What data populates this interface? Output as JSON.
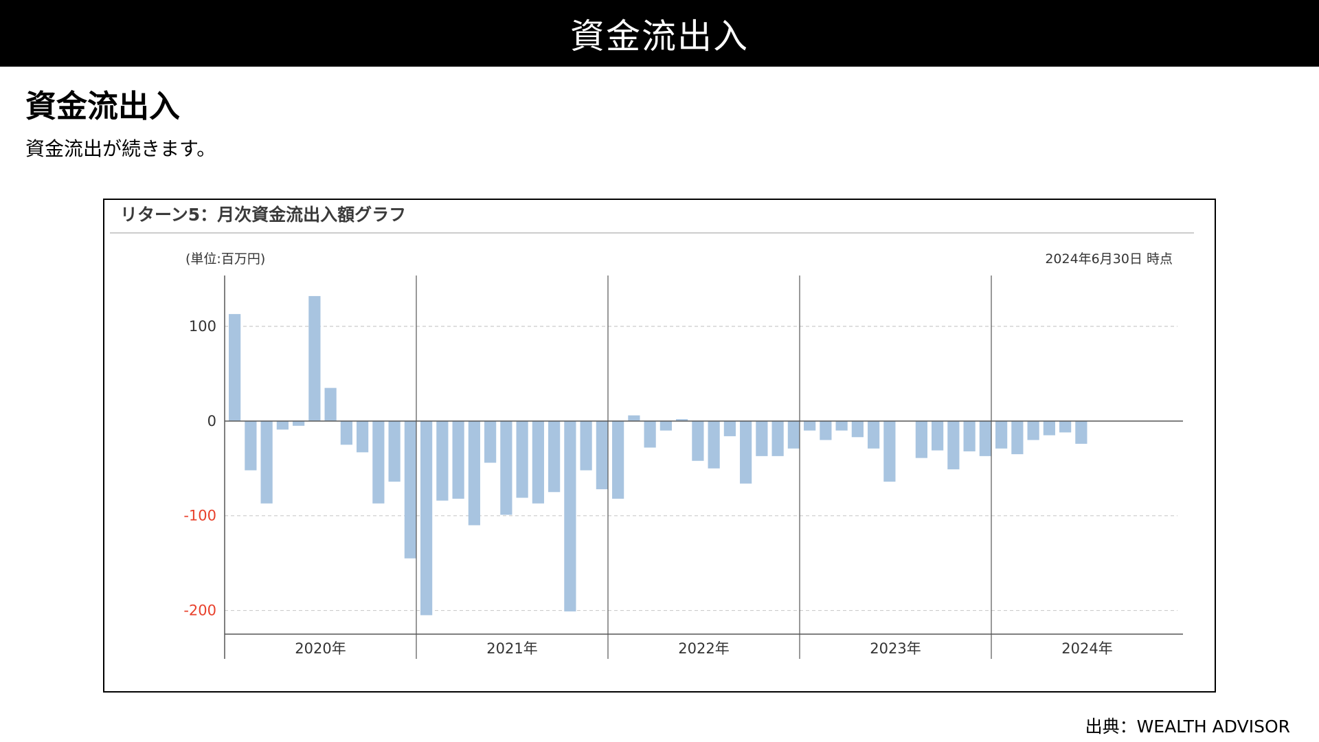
{
  "header": {
    "title": "資金流出入"
  },
  "section": {
    "heading": "資金流出入",
    "description": "資金流出が続きます。"
  },
  "source": "出典：WEALTH ADVISOR",
  "chart_data": {
    "type": "bar",
    "title": "リターン5：月次資金流出入額グラフ",
    "unit_label": "(単位:百万円)",
    "as_of": "2024年6月30日 時点",
    "ylim": [
      -225,
      145
    ],
    "yticks": [
      100,
      0,
      -100,
      -200
    ],
    "tick_colors": {
      "positive": "#333333",
      "negative": "#e8412c"
    },
    "bar_color": "#a8c4e0",
    "grid": true,
    "year_labels": [
      "2020年",
      "2021年",
      "2022年",
      "2023年",
      "2024年"
    ],
    "series": [
      {
        "values": [
          113,
          -52,
          -87,
          -9,
          -5,
          132,
          35,
          -25,
          -33,
          -87,
          -64,
          -145,
          -205,
          -84,
          -82,
          -110,
          -44,
          -99,
          -81,
          -87,
          -75,
          -201,
          -52,
          -72,
          -82,
          6,
          -28,
          -10,
          2,
          -42,
          -50,
          -16,
          -66,
          -37,
          -37,
          -29,
          -10,
          -20,
          -10,
          -17,
          -29,
          -64,
          0,
          -39,
          -31,
          -51,
          -32,
          -37,
          -29,
          -35,
          -20,
          -15,
          -12,
          -24
        ]
      }
    ],
    "colors": {
      "bar": "#a8c4e0",
      "zero_line": "#555555",
      "grid": "#cccccc"
    }
  }
}
